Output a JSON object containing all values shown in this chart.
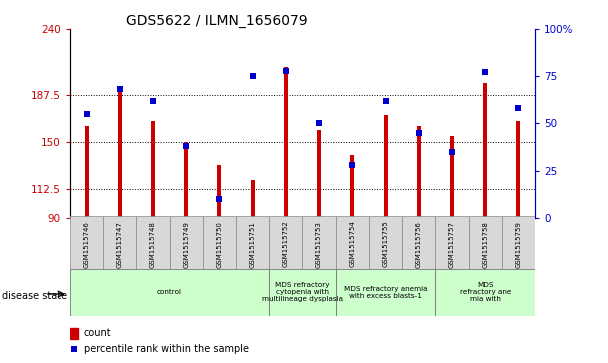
{
  "title": "GDS5622 / ILMN_1656079",
  "samples": [
    "GSM1515746",
    "GSM1515747",
    "GSM1515748",
    "GSM1515749",
    "GSM1515750",
    "GSM1515751",
    "GSM1515752",
    "GSM1515753",
    "GSM1515754",
    "GSM1515755",
    "GSM1515756",
    "GSM1515757",
    "GSM1515758",
    "GSM1515759"
  ],
  "counts": [
    163,
    190,
    167,
    150,
    132,
    120,
    210,
    160,
    140,
    172,
    163,
    155,
    197,
    167
  ],
  "percentile_ranks": [
    55,
    68,
    62,
    38,
    10,
    75,
    78,
    50,
    28,
    62,
    45,
    35,
    77,
    58
  ],
  "y_min": 90,
  "y_max": 240,
  "y_ticks": [
    90,
    112.5,
    150,
    187.5,
    240
  ],
  "y_tick_labels": [
    "90",
    "112.5",
    "150",
    "187.5",
    "240"
  ],
  "y2_ticks": [
    0,
    25,
    50,
    75,
    100
  ],
  "y2_tick_labels": [
    "0",
    "25",
    "50",
    "75",
    "100%"
  ],
  "bar_color": "#cc0000",
  "dot_color": "#0000cc",
  "disease_groups": [
    {
      "label": "control",
      "start": 0,
      "end": 6,
      "color": "#ccffcc"
    },
    {
      "label": "MDS refractory\ncytopenia with\nmultilineage dysplasia",
      "start": 6,
      "end": 8,
      "color": "#ccffcc"
    },
    {
      "label": "MDS refractory anemia\nwith excess blasts-1",
      "start": 8,
      "end": 11,
      "color": "#ccffcc"
    },
    {
      "label": "MDS\nrefractory ane\nmia with",
      "start": 11,
      "end": 14,
      "color": "#ccffcc"
    }
  ],
  "legend_count_color": "#cc0000",
  "legend_pct_color": "#0000cc",
  "title_fontsize": 10,
  "tick_fontsize": 7.5,
  "bar_width": 0.12,
  "dot_size": 4
}
